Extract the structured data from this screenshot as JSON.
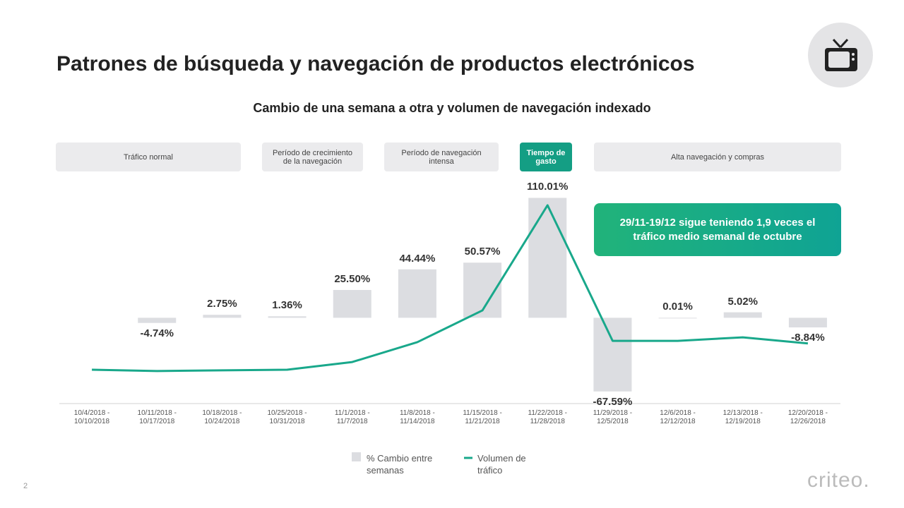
{
  "page_number": "2",
  "logo": "criteo.",
  "chart_data": {
    "type": "bar_line",
    "title": "Patrones de búsqueda y navegación de productos electrónicos",
    "subtitle": "Cambio de una semana a otra y volumen de navegación indexado",
    "phases": [
      "Tráfico normal",
      "Período de crecimiento de la navegación",
      "Período de navegación intensa",
      "Tiempo de gasto",
      "Alta navegación y compras"
    ],
    "annotation": "29/11-19/12 sigue teniendo 1,9 veces el tráfico medio semanal de octubre",
    "categories": [
      "10/4/2018 - 10/10/2018",
      "10/11/2018 - 10/17/2018",
      "10/18/2018 - 10/24/2018",
      "10/25/2018 - 10/31/2018",
      "11/1/2018 - 11/7/2018",
      "11/8/2018 - 11/14/2018",
      "11/15/2018 - 11/21/2018",
      "11/22/2018 - 11/28/2018",
      "11/29/2018 - 12/5/2018",
      "12/6/2018 - 12/12/2018",
      "12/13/2018 - 12/19/2018",
      "12/20/2018 - 12/26/2018"
    ],
    "series": [
      {
        "name": "% Cambio entre semanas",
        "color": "#dcdde1",
        "values": [
          null,
          -4.74,
          2.75,
          1.36,
          25.5,
          44.44,
          50.57,
          110.01,
          -67.59,
          0.01,
          5.02,
          -8.84
        ],
        "value_labels": [
          null,
          "-4.74%",
          "2.75%",
          "1.36%",
          "25.50%",
          "44.44%",
          "50.57%",
          "110.01%",
          "-67.59%",
          "0.01%",
          "5.02%",
          "-8.84%"
        ]
      },
      {
        "name": "Volumen de tráfico",
        "color": "#19a88b",
        "axis": "y2",
        "values": [
          110,
          106,
          108,
          110,
          134,
          196,
          295,
          623,
          200,
          200,
          211,
          192
        ]
      }
    ],
    "ylim": [
      -80,
      120
    ],
    "y2lim": [
      0,
      680
    ],
    "grid": false
  }
}
